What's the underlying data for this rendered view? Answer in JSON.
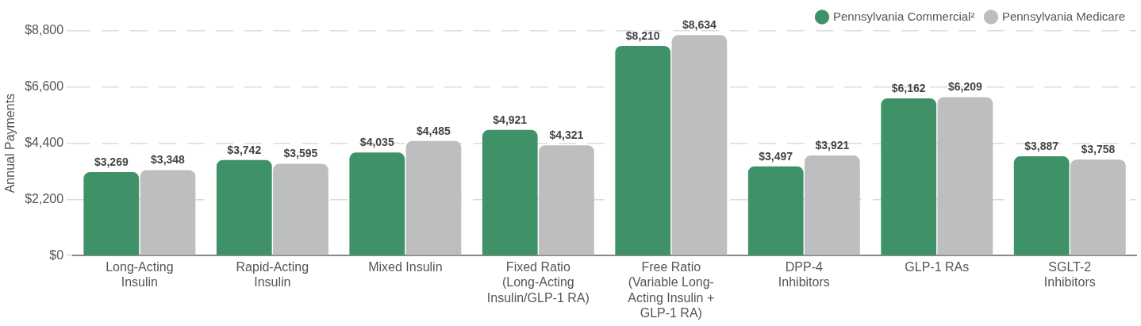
{
  "chart_data": {
    "type": "bar",
    "ylabel": "Annual Payments",
    "categories": [
      "Long-Acting\nInsulin",
      "Rapid-Acting\nInsulin",
      "Mixed Insulin",
      "Fixed Ratio\n(Long-Acting\nInsulin/GLP-1 RA)",
      "Free Ratio\n(Variable Long-\nActing Insulin +\nGLP-1 RA)",
      "DPP-4\nInhibitors",
      "GLP-1 RAs",
      "SGLT-2\nInhibitors"
    ],
    "series": [
      {
        "name": "Pennsylvania Commercial²",
        "color": "#3f9268",
        "values": [
          3269,
          3742,
          4035,
          4921,
          8210,
          3497,
          6162,
          3887
        ],
        "value_labels": [
          "$3,269",
          "$3,742",
          "$4,035",
          "$4,921",
          "$8,210",
          "$3,497",
          "$6,162",
          "$3,887"
        ]
      },
      {
        "name": "Pennsylvania Medicare",
        "color": "#bdbec0",
        "values": [
          3348,
          3595,
          4485,
          4321,
          8634,
          3921,
          6209,
          3758
        ],
        "value_labels": [
          "$3,348",
          "$3,595",
          "$4,485",
          "$4,321",
          "$8,634",
          "$3,921",
          "$6,209",
          "$3,758"
        ]
      }
    ],
    "ylim": [
      0,
      8800
    ],
    "yticks": [
      {
        "value": 0,
        "label": "$0"
      },
      {
        "value": 2200,
        "label": "$2,200"
      },
      {
        "value": 4400,
        "label": "$4,400"
      },
      {
        "value": 6600,
        "label": "$6,600"
      },
      {
        "value": 8800,
        "label": "$8,800"
      }
    ],
    "grid": "y",
    "legend": "top right"
  }
}
